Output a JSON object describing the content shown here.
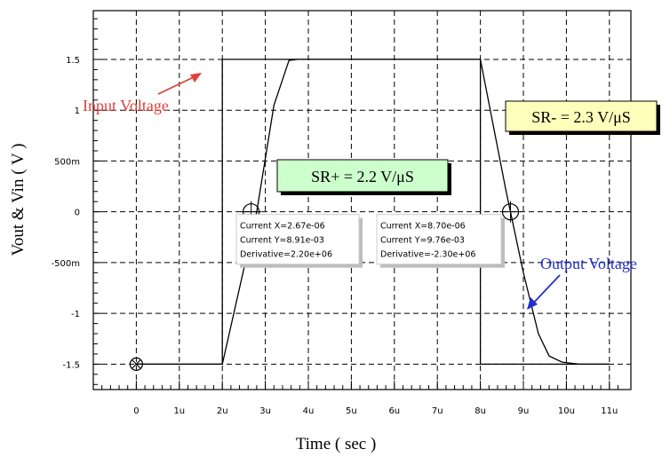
{
  "chart_data": {
    "type": "line",
    "title": "",
    "xlabel": "Time ( sec )",
    "ylabel": "Vout & Vin ( V )",
    "xlim": [
      -1.0,
      11.5
    ],
    "ylim": [
      -1.75,
      1.98
    ],
    "x_ticks": [
      0,
      1,
      2,
      3,
      4,
      5,
      6,
      7,
      8,
      9,
      10,
      11
    ],
    "x_tick_labels": [
      "0",
      "1u",
      "2u",
      "3u",
      "4u",
      "5u",
      "6u",
      "7u",
      "8u",
      "9u",
      "10u",
      "11u"
    ],
    "y_ticks": [
      1.5,
      1.0,
      0.5,
      0.0,
      -0.5,
      -1.0,
      -1.5
    ],
    "y_tick_labels": [
      "1.5",
      "1",
      "500m",
      "0",
      "-500m",
      "-1",
      "-1.5"
    ],
    "grid": true,
    "series": [
      {
        "name": "Input Voltage",
        "x": [
          0,
          2.0,
          2.0,
          8.0,
          8.0,
          11.0
        ],
        "y": [
          -1.5,
          -1.5,
          1.5,
          1.5,
          -1.5,
          -1.5
        ]
      },
      {
        "name": "Output Voltage",
        "x": [
          0,
          2.0,
          2.8,
          3.2,
          3.55,
          3.75,
          8.0,
          8.6,
          9.0,
          9.35,
          9.6,
          9.9,
          10.3,
          11.0
        ],
        "y": [
          -1.5,
          -1.5,
          0.0,
          1.05,
          1.49,
          1.5,
          1.5,
          0.2,
          -0.6,
          -1.2,
          -1.42,
          -1.48,
          -1.5,
          -1.5
        ]
      }
    ],
    "annotations": {
      "input_label": "Input Voltage",
      "output_label": "Output Voltage",
      "sr_plus": "SR+ = 2.2 V/μS",
      "sr_minus": "SR- = 2.3 V/μS",
      "cursor1": {
        "x": 2.67,
        "y": 0.0,
        "lines": [
          "Current X=2.67e-06",
          "Current Y=8.91e-03",
          "Derivative=2.20e+06"
        ]
      },
      "cursor2": {
        "x": 8.7,
        "y": 0.0,
        "lines": [
          "Current X=8.70e-06",
          "Current Y=9.76e-03",
          "Derivative=-2.30e+06"
        ]
      },
      "origin_marker": {
        "x": 0,
        "y": -1.5
      }
    }
  },
  "colors": {
    "curve": "#000000",
    "grid": "#000000",
    "sr_box_fill": "#ccffcc",
    "sr_minus_fill": "#ffffbb",
    "input_label": "#e0403a",
    "output_label": "#1f2fd0"
  }
}
